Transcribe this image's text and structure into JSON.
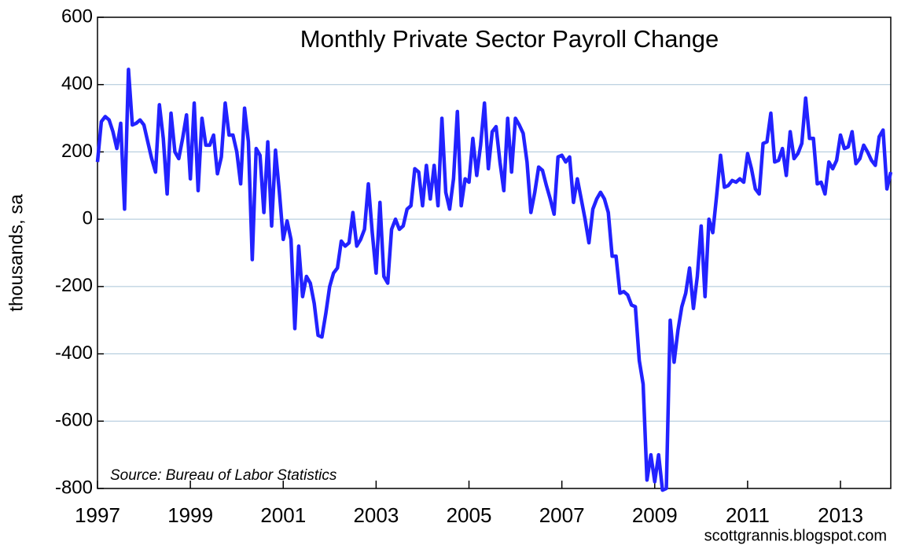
{
  "chart_data": {
    "type": "line",
    "title": "Monthly Private Sector Payroll Change",
    "source": "Source:  Bureau of Labor Statistics",
    "credit": "scottgrannis.blogspot.com",
    "y_label": "thousands, sa",
    "color": "#2222ff",
    "grid": true,
    "xlim": [
      1997,
      2014.083
    ],
    "xticks": [
      1997,
      1999,
      2001,
      2003,
      2005,
      2007,
      2009,
      2011,
      2013
    ],
    "ylim": [
      -800,
      600
    ],
    "yticks": [
      -800,
      -600,
      -400,
      -200,
      0,
      200,
      400,
      600
    ],
    "x": [
      1997,
      1997.083,
      1997.167,
      1997.25,
      1997.333,
      1997.417,
      1997.5,
      1997.583,
      1997.667,
      1997.75,
      1997.833,
      1997.917,
      1998,
      1998.083,
      1998.167,
      1998.25,
      1998.333,
      1998.417,
      1998.5,
      1998.583,
      1998.667,
      1998.75,
      1998.833,
      1998.917,
      1999,
      1999.083,
      1999.167,
      1999.25,
      1999.333,
      1999.417,
      1999.5,
      1999.583,
      1999.667,
      1999.75,
      1999.833,
      1999.917,
      2000,
      2000.083,
      2000.167,
      2000.25,
      2000.333,
      2000.417,
      2000.5,
      2000.583,
      2000.667,
      2000.75,
      2000.833,
      2000.917,
      2001,
      2001.083,
      2001.167,
      2001.25,
      2001.333,
      2001.417,
      2001.5,
      2001.583,
      2001.667,
      2001.75,
      2001.833,
      2001.917,
      2002,
      2002.083,
      2002.167,
      2002.25,
      2002.333,
      2002.417,
      2002.5,
      2002.583,
      2002.667,
      2002.75,
      2002.833,
      2002.917,
      2003,
      2003.083,
      2003.167,
      2003.25,
      2003.333,
      2003.417,
      2003.5,
      2003.583,
      2003.667,
      2003.75,
      2003.833,
      2003.917,
      2004,
      2004.083,
      2004.167,
      2004.25,
      2004.333,
      2004.417,
      2004.5,
      2004.583,
      2004.667,
      2004.75,
      2004.833,
      2004.917,
      2005,
      2005.083,
      2005.167,
      2005.25,
      2005.333,
      2005.417,
      2005.5,
      2005.583,
      2005.667,
      2005.75,
      2005.833,
      2005.917,
      2006,
      2006.083,
      2006.167,
      2006.25,
      2006.333,
      2006.417,
      2006.5,
      2006.583,
      2006.667,
      2006.75,
      2006.833,
      2006.917,
      2007,
      2007.083,
      2007.167,
      2007.25,
      2007.333,
      2007.417,
      2007.5,
      2007.583,
      2007.667,
      2007.75,
      2007.833,
      2007.917,
      2008,
      2008.083,
      2008.167,
      2008.25,
      2008.333,
      2008.417,
      2008.5,
      2008.583,
      2008.667,
      2008.75,
      2008.833,
      2008.917,
      2009,
      2009.083,
      2009.167,
      2009.25,
      2009.333,
      2009.417,
      2009.5,
      2009.583,
      2009.667,
      2009.75,
      2009.833,
      2009.917,
      2010,
      2010.083,
      2010.167,
      2010.25,
      2010.333,
      2010.417,
      2010.5,
      2010.583,
      2010.667,
      2010.75,
      2010.833,
      2010.917,
      2011,
      2011.083,
      2011.167,
      2011.25,
      2011.333,
      2011.417,
      2011.5,
      2011.583,
      2011.667,
      2011.75,
      2011.833,
      2011.917,
      2012,
      2012.083,
      2012.167,
      2012.25,
      2012.333,
      2012.417,
      2012.5,
      2012.583,
      2012.667,
      2012.75,
      2012.833,
      2012.917,
      2013,
      2013.083,
      2013.167,
      2013.25,
      2013.333,
      2013.417,
      2013.5,
      2013.583,
      2013.667,
      2013.75,
      2013.833,
      2013.917,
      2014,
      2014.083
    ],
    "values": [
      170,
      290,
      305,
      295,
      260,
      210,
      285,
      30,
      445,
      280,
      285,
      295,
      280,
      230,
      180,
      140,
      340,
      240,
      75,
      315,
      200,
      180,
      240,
      310,
      120,
      345,
      85,
      300,
      220,
      220,
      250,
      135,
      185,
      345,
      250,
      250,
      200,
      105,
      330,
      230,
      -120,
      210,
      190,
      20,
      230,
      -20,
      205,
      80,
      -60,
      -5,
      -60,
      -325,
      -80,
      -230,
      -170,
      -190,
      -250,
      -345,
      -350,
      -280,
      -200,
      -160,
      -145,
      -65,
      -80,
      -70,
      20,
      -80,
      -60,
      -30,
      105,
      -40,
      -160,
      50,
      -170,
      -190,
      -30,
      0,
      -30,
      -20,
      30,
      40,
      150,
      140,
      40,
      160,
      60,
      160,
      40,
      300,
      80,
      30,
      120,
      320,
      40,
      120,
      110,
      240,
      130,
      220,
      345,
      150,
      260,
      275,
      170,
      85,
      300,
      140,
      300,
      280,
      255,
      170,
      20,
      80,
      155,
      145,
      100,
      60,
      15,
      185,
      190,
      170,
      185,
      50,
      120,
      60,
      0,
      -70,
      30,
      60,
      80,
      60,
      20,
      -110,
      -110,
      -220,
      -215,
      -225,
      -255,
      -260,
      -420,
      -490,
      -775,
      -700,
      -780,
      -700,
      -805,
      -800,
      -300,
      -425,
      -330,
      -260,
      -220,
      -145,
      -265,
      -170,
      -20,
      -230,
      0,
      -40,
      70,
      190,
      95,
      100,
      115,
      110,
      120,
      110,
      195,
      150,
      90,
      75,
      225,
      230,
      315,
      170,
      175,
      210,
      130,
      260,
      180,
      195,
      225,
      360,
      240,
      240,
      105,
      110,
      75,
      170,
      150,
      175,
      250,
      210,
      215,
      260,
      165,
      180,
      220,
      200,
      175,
      160,
      245,
      265,
      90,
      140
    ]
  }
}
